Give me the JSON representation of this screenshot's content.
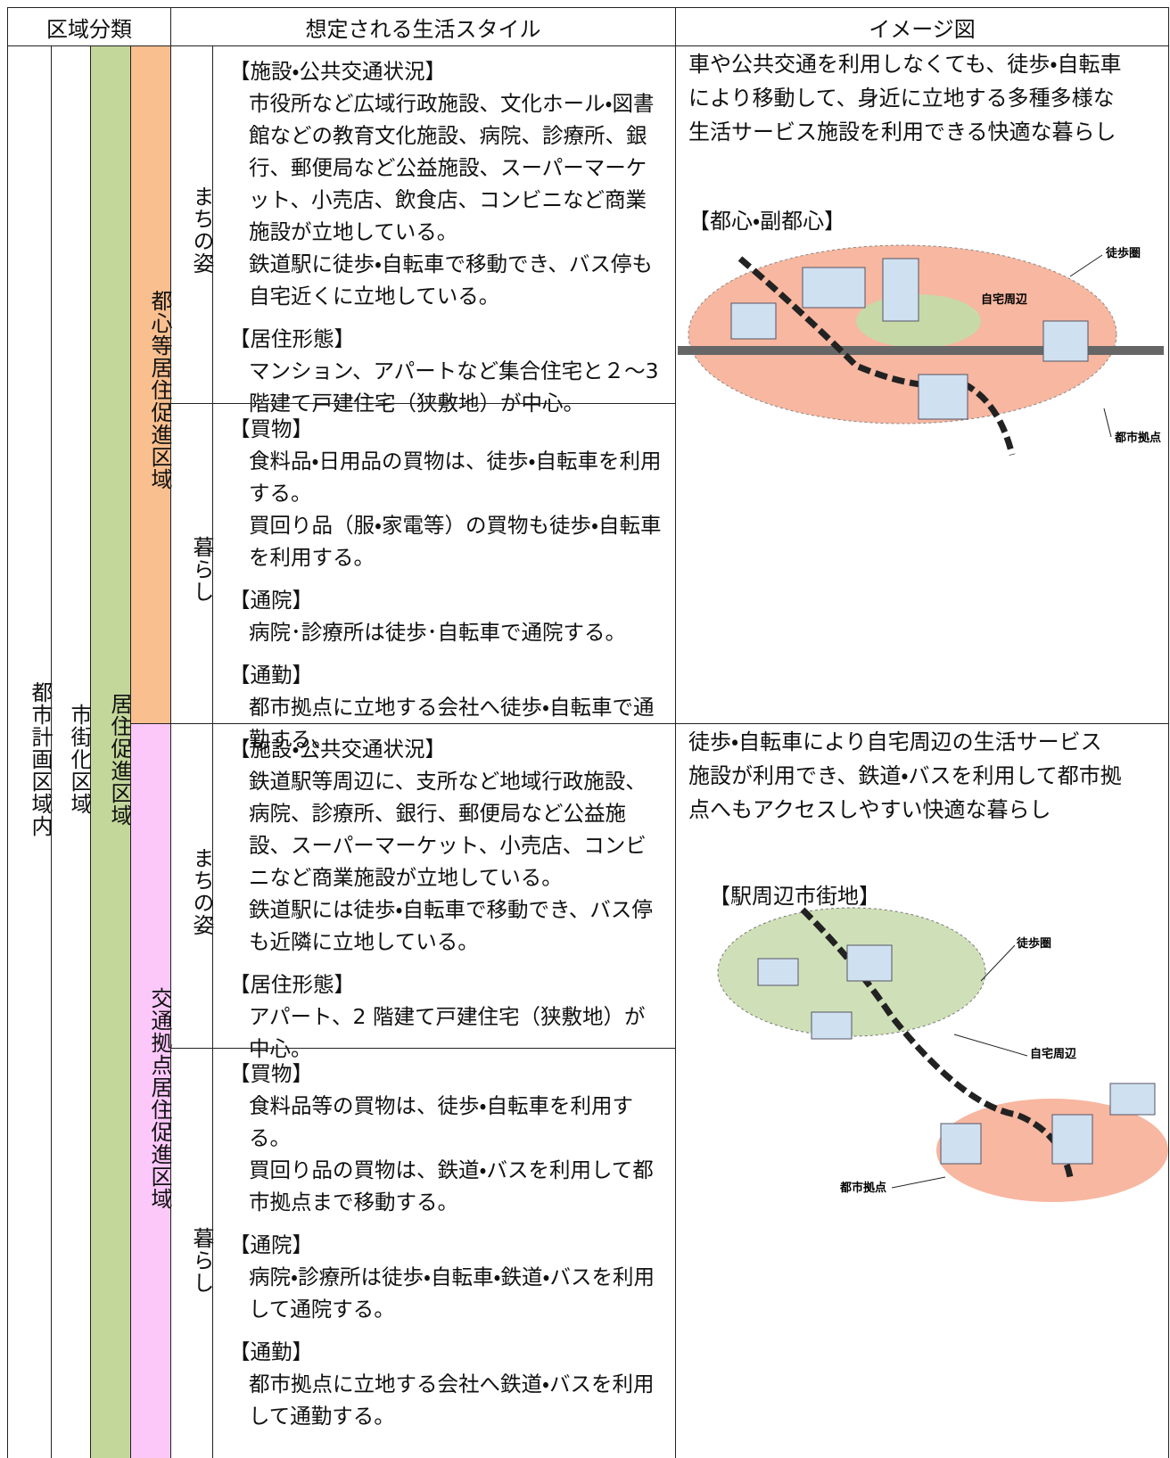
{
  "header": {
    "classification": "区域分類",
    "lifestyle": "想定される生活スタイル",
    "image": "イメージ図"
  },
  "classification": {
    "city_planning": "都市計画区域内",
    "urbanization": "市街化区域",
    "residence_promotion": "居住促進区域",
    "zones": [
      "都心等居住促進区域",
      "交通拠点居住促進区域"
    ]
  },
  "sections": [
    {
      "aspects": [
        {
          "label": "まちの姿",
          "items": [
            {
              "heading": "【施設・公共交通状況】",
              "paragraphs": [
                "市役所など広域行政施設、文化ホール・図書館などの教育文化施設、病院、診療所、銀行、郵便局など公益施設、スーパーマーケット、小売店、飲食店、コンビニなど商業施設が立地している。",
                "鉄道駅に徒歩・自転車で移動でき、バス停も自宅近くに立地している。"
              ]
            },
            {
              "heading": "【居住形態】",
              "paragraphs": [
                "マンション、アパートなど集合住宅と２～3 階建て戸建住宅（狭敷地）が中心。"
              ]
            }
          ]
        },
        {
          "label": "暮らし",
          "items": [
            {
              "heading": "【買物】",
              "paragraphs": [
                "食料品・日用品の買物は、徒歩・自転車を利用する。",
                "買回り品（服・家電等）の買物も徒歩・自転車を利用する。"
              ]
            },
            {
              "heading": "【通院】",
              "paragraphs": [
                "病院･診療所は徒歩･自転車で通院する。"
              ]
            },
            {
              "heading": "【通勤】",
              "paragraphs": [
                "都市拠点に立地する会社へ徒歩・自転車で通勤する。"
              ]
            }
          ]
        }
      ],
      "image": {
        "description": "車や公共交通を利用しなくても、徒歩・自転車により移動して、身近に立地する多種多様な生活サービス施設を利用できる快適な暮らし",
        "caption": "【都心・副都心】",
        "labels": [
          "徒歩圏",
          "自宅周辺",
          "都市拠点"
        ]
      }
    },
    {
      "aspects": [
        {
          "label": "まちの姿",
          "items": [
            {
              "heading": "【施設・公共交通状況】",
              "paragraphs": [
                "鉄道駅等周辺に、支所など地域行政施設、病院、診療所、銀行、郵便局など公益施設、スーパーマーケット、小売店、コンビニなど商業施設が立地している。",
                "鉄道駅には徒歩・自転車で移動でき、バス停も近隣に立地している。"
              ]
            },
            {
              "heading": "【居住形態】",
              "paragraphs": [
                "アパート、2 階建て戸建住宅（狭敷地）が中心。"
              ]
            }
          ]
        },
        {
          "label": "暮らし",
          "items": [
            {
              "heading": "【買物】",
              "paragraphs": [
                "食料品等の買物は、徒歩・自転車を利用する。",
                "買回り品の買物は、鉄道・バスを利用して都市拠点まで移動する。"
              ]
            },
            {
              "heading": "【通院】",
              "paragraphs": [
                "病院・診療所は徒歩・自転車・鉄道・バスを利用して通院する。"
              ]
            },
            {
              "heading": "【通勤】",
              "paragraphs": [
                "都市拠点に立地する会社へ鉄道・バスを利用して通勤する。"
              ]
            }
          ]
        }
      ],
      "image": {
        "description": "徒歩・自転車により自宅周辺の生活サービス施設が利用でき、鉄道・バスを利用して都市拠点へもアクセスしやすい快適な暮らし",
        "caption": "【駅周辺市街地】",
        "labels": [
          "徒歩圏",
          "自宅周辺",
          "都市拠点"
        ]
      }
    }
  ]
}
